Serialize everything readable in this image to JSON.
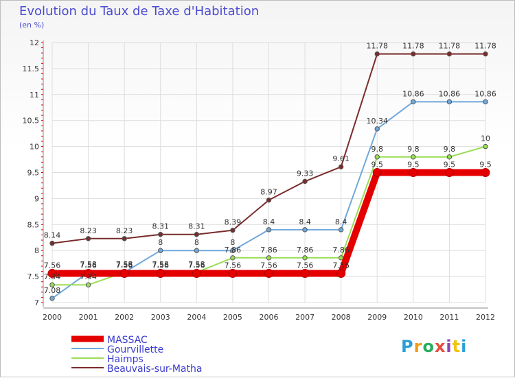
{
  "title": "Evolution du Taux de Taxe d'Habitation",
  "subtitle": "(en %)",
  "logo_text": "Proxiti",
  "chart_data": {
    "type": "line",
    "title": "Evolution du Taux de Taxe d'Habitation",
    "ylabel": "(en %)",
    "xlabel": "",
    "x": [
      "2000",
      "2001",
      "2002",
      "2003",
      "2004",
      "2005",
      "2006",
      "2007",
      "2008",
      "2009",
      "2010",
      "2011",
      "2012"
    ],
    "ylim": [
      7,
      12
    ],
    "yticks": [
      "7",
      "7.5",
      "8",
      "8.5",
      "9",
      "9.5",
      "10",
      "10.5",
      "11",
      "11.5",
      "12"
    ],
    "grid": true,
    "legend_position": "bottom-left",
    "series": [
      {
        "name": "MASSAC",
        "color": "#e50000",
        "values": [
          7.56,
          7.56,
          7.56,
          7.56,
          7.56,
          7.56,
          7.56,
          7.56,
          7.56,
          9.5,
          9.5,
          9.5,
          9.5
        ],
        "labels": [
          "7.56",
          "7.56",
          "7.56",
          "7.56",
          "7.56",
          "7.56",
          "7.56",
          "7.56",
          "7.56",
          "9.5",
          "9.5",
          "9.5",
          "9.5"
        ]
      },
      {
        "name": "Gourvillette",
        "color": "#6fa8dc",
        "values": [
          7.08,
          7.58,
          7.58,
          8,
          8,
          8,
          8.4,
          8.4,
          8.4,
          10.34,
          10.86,
          10.86,
          10.86
        ],
        "labels": [
          "7.08",
          "7.58",
          "7.58",
          "8",
          "8",
          "8",
          "8.4",
          "8.4",
          "8.4",
          "10.34",
          "10.86",
          "10.86",
          "10.86"
        ]
      },
      {
        "name": "Haimps",
        "color": "#99dd55",
        "values": [
          7.34,
          7.34,
          7.58,
          7.58,
          7.58,
          7.86,
          7.86,
          7.86,
          7.86,
          9.8,
          9.8,
          9.8,
          10
        ],
        "labels": [
          "7.34",
          "7.34",
          "7.58",
          "7.58",
          "7.58",
          "7.86",
          "7.86",
          "7.86",
          "7.86",
          "9.8",
          "9.8",
          "9.8",
          "10"
        ]
      },
      {
        "name": "Beauvais-sur-Matha",
        "color": "#7a2b2b",
        "values": [
          8.14,
          8.23,
          8.23,
          8.31,
          8.31,
          8.39,
          8.97,
          9.33,
          9.61,
          11.78,
          11.78,
          11.78,
          11.78
        ],
        "labels": [
          "8.14",
          "8.23",
          "8.23",
          "8.31",
          "8.31",
          "8.39",
          "8.97",
          "9.33",
          "9.61",
          "11.78",
          "11.78",
          "11.78",
          "11.78"
        ]
      }
    ]
  }
}
